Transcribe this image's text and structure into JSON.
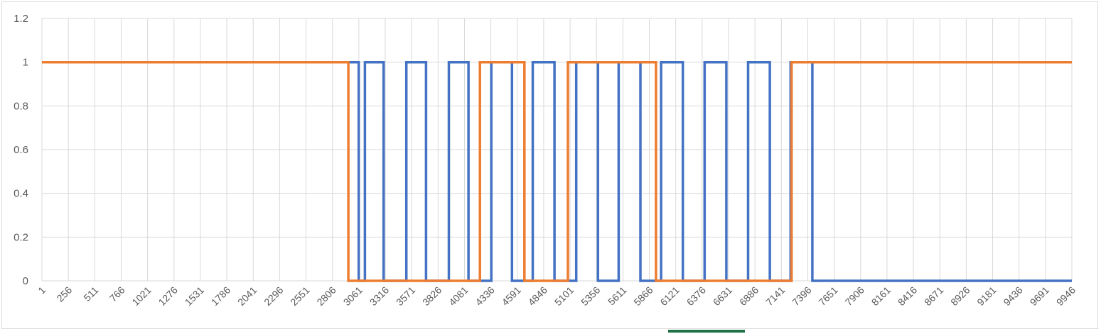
{
  "chart_data": {
    "type": "line",
    "title": "",
    "xlabel": "",
    "ylabel": "",
    "ylim": [
      0,
      1.2
    ],
    "yticks": [
      "0",
      "0.2",
      "0.4",
      "0.6",
      "0.8",
      "1",
      "1.2"
    ],
    "xlim": [
      1,
      9946
    ],
    "xticks": [
      "1",
      "256",
      "511",
      "766",
      "1021",
      "1276",
      "1531",
      "1786",
      "2041",
      "2296",
      "2551",
      "2806",
      "3061",
      "3316",
      "3571",
      "3826",
      "4081",
      "4336",
      "4591",
      "4846",
      "5101",
      "5356",
      "5611",
      "5866",
      "6121",
      "6376",
      "6631",
      "6886",
      "7141",
      "7396",
      "7651",
      "7906",
      "8161",
      "8416",
      "8671",
      "8926",
      "9181",
      "9436",
      "9691",
      "9946"
    ],
    "grid": true,
    "legend": "none",
    "series": [
      {
        "color": "#4472c4",
        "x": [
          1,
          3060,
          3060,
          3120,
          3120,
          3300,
          3300,
          3520,
          3520,
          3710,
          3710,
          3930,
          3930,
          4120,
          4120,
          4340,
          4340,
          4540,
          4540,
          4740,
          4740,
          4950,
          4950,
          5160,
          5160,
          5370,
          5370,
          5570,
          5570,
          5780,
          5780,
          5980,
          5980,
          6190,
          6190,
          6400,
          6400,
          6610,
          6610,
          6820,
          6820,
          7030,
          7030,
          7230,
          7230,
          7440,
          7440,
          9946
        ],
        "y": [
          1,
          1,
          0,
          0,
          1,
          1,
          0,
          0,
          1,
          1,
          0,
          0,
          1,
          1,
          0,
          0,
          1,
          1,
          0,
          0,
          1,
          1,
          0,
          0,
          1,
          1,
          0,
          0,
          1,
          1,
          0,
          0,
          1,
          1,
          0,
          0,
          1,
          1,
          0,
          0,
          1,
          1,
          0,
          0,
          1,
          1,
          0,
          0
        ]
      },
      {
        "color": "#ed7d31",
        "x": [
          1,
          2960,
          2960,
          4230,
          4230,
          4660,
          4660,
          5080,
          5080,
          5930,
          5930,
          7240,
          7240,
          9946
        ],
        "y": [
          1,
          1,
          0,
          0,
          1,
          1,
          0,
          0,
          1,
          1,
          0,
          0,
          1,
          1
        ]
      }
    ]
  }
}
